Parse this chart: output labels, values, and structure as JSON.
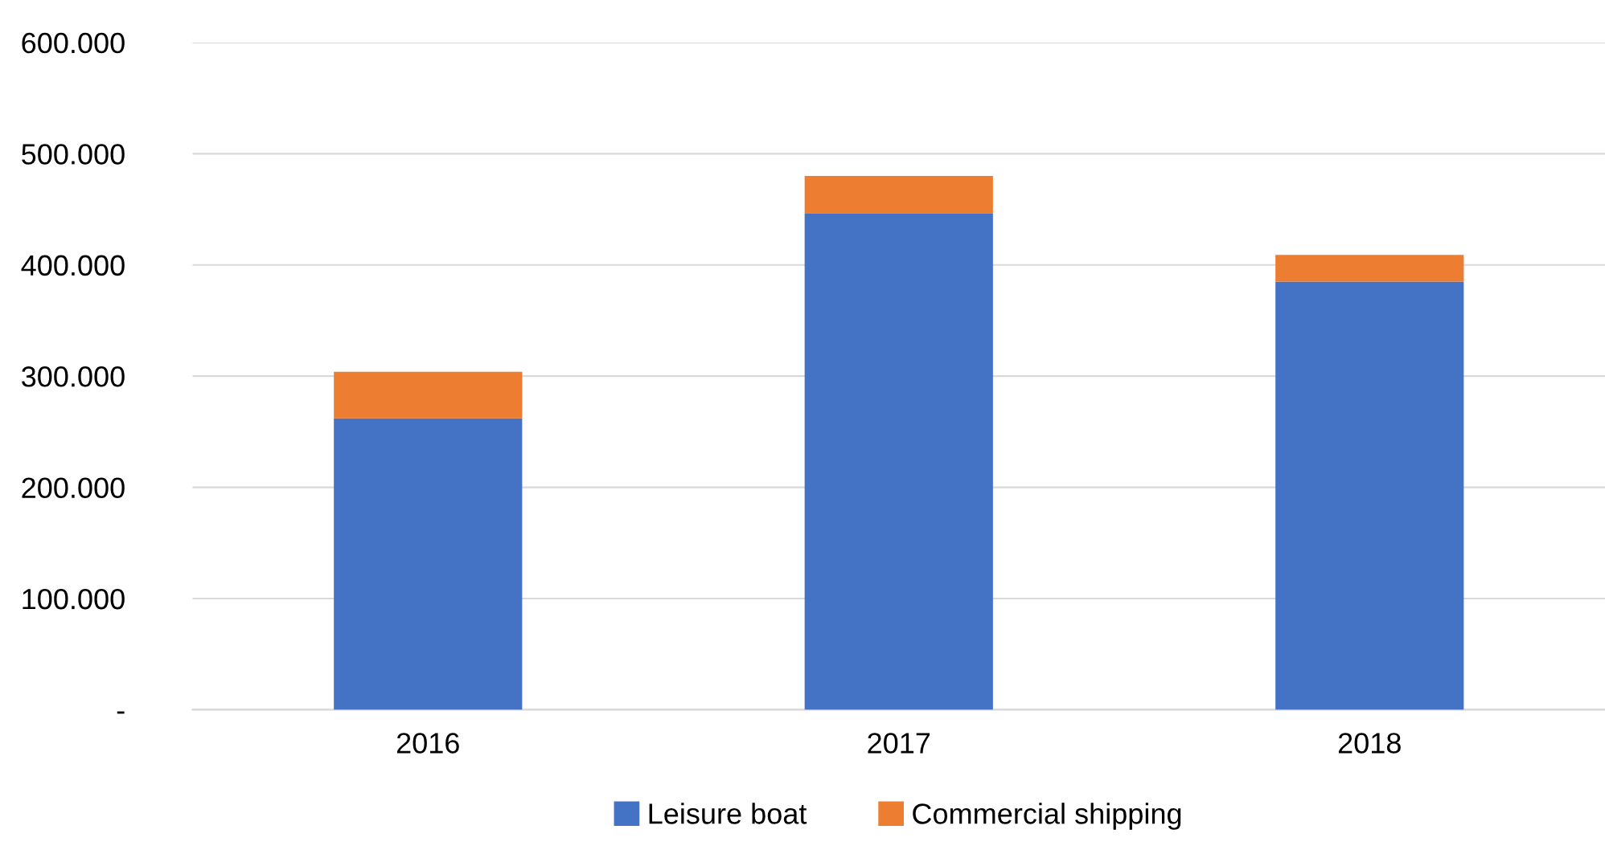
{
  "chart_data": {
    "type": "bar",
    "stacked": true,
    "categories": [
      "2016",
      "2017",
      "2018"
    ],
    "series": [
      {
        "name": "Leisure boat",
        "color": "#4472c4",
        "values": [
          262000,
          446000,
          385000
        ]
      },
      {
        "name": "Commercial shipping",
        "color": "#ed7d31",
        "values": [
          42000,
          34000,
          24000
        ]
      }
    ],
    "ylim": [
      0,
      600000
    ],
    "yticks": [
      {
        "value": 0,
        "label": "-"
      },
      {
        "value": 100000,
        "label": "100.000"
      },
      {
        "value": 200000,
        "label": "200.000"
      },
      {
        "value": 300000,
        "label": "300.000"
      },
      {
        "value": 400000,
        "label": "400.000"
      },
      {
        "value": 500000,
        "label": "500.000"
      },
      {
        "value": 600000,
        "label": "600.000"
      }
    ],
    "grid": "y",
    "legend": "bottom"
  }
}
